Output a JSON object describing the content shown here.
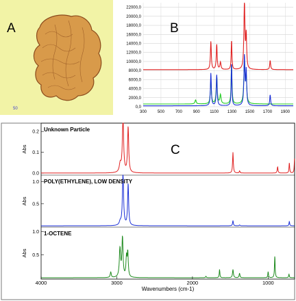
{
  "panels": {
    "a": {
      "letter": "A",
      "scale_label": "50",
      "background": "#f2f3a6",
      "particle_fill": "#d89a4a",
      "particle_stroke": "#8a4a1c"
    },
    "b": {
      "letter": "B"
    },
    "c": {
      "letter": "C"
    }
  },
  "chart_data": [
    {
      "id": "raman",
      "type": "line",
      "ylim": [
        0,
        23000
      ],
      "xlim": [
        300,
        1990
      ],
      "grid": true,
      "y_ticks": [
        "0,0",
        "2000,0",
        "4000,0",
        "6000,0",
        "8000,0",
        "10000,0",
        "12000,0",
        "14000,0",
        "16000,0",
        "18000,0",
        "20000,0",
        "22000,0"
      ],
      "y_tick_values": [
        0,
        2000,
        4000,
        6000,
        8000,
        10000,
        12000,
        14000,
        16000,
        18000,
        20000,
        22000
      ],
      "x_ticks": [
        "300",
        "500",
        "700",
        "900",
        "1100",
        "1300",
        "1500",
        "1700",
        "1900"
      ],
      "x_tick_values": [
        300,
        500,
        700,
        900,
        1100,
        1300,
        1500,
        1700,
        1900
      ],
      "series": [
        {
          "color": "#e02020",
          "baseline": 8200,
          "peaks": [
            [
              1062,
              6200,
              6
            ],
            [
              1128,
              5500,
              6
            ],
            [
              1170,
              1600,
              7
            ],
            [
              1295,
              6400,
              5
            ],
            [
              1440,
              14800,
              7
            ],
            [
              1460,
              7200,
              6
            ],
            [
              1730,
              2000,
              6
            ]
          ]
        },
        {
          "color": "#1a2fd6",
          "baseline": 200,
          "peaks": [
            [
              1062,
              7200,
              6
            ],
            [
              1128,
              6800,
              6
            ],
            [
              1295,
              9400,
              5
            ],
            [
              1440,
              10800,
              7
            ],
            [
              1460,
              7400,
              6
            ],
            [
              1730,
              2400,
              6
            ]
          ]
        },
        {
          "color": "#22cc22",
          "baseline": 600,
          "peaks": [
            [
              890,
              900,
              8
            ],
            [
              1062,
              5000,
              7
            ],
            [
              1128,
              6000,
              7
            ],
            [
              1170,
              2000,
              8
            ],
            [
              1295,
              8600,
              6
            ],
            [
              1440,
              9400,
              8
            ],
            [
              1460,
              5600,
              7
            ]
          ]
        }
      ]
    },
    {
      "id": "unknown-particle",
      "type": "line",
      "title": "Unknown Particle",
      "ylabel": "Abs",
      "ylim": [
        -0.01,
        0.24
      ],
      "xlim": [
        4000,
        650
      ],
      "y_ticks": [
        "0.0",
        "0.1",
        "0.2"
      ],
      "y_tick_values": [
        0,
        0.1,
        0.2
      ],
      "series": [
        {
          "color": "#e02020",
          "baseline": 0.0,
          "peaks": [
            [
              2955,
              0.04,
              14
            ],
            [
              2918,
              0.27,
              10
            ],
            [
              2850,
              0.22,
              9
            ],
            [
              1465,
              0.1,
              6
            ],
            [
              1377,
              0.01,
              6
            ],
            [
              720,
              0.05,
              5
            ],
            [
              875,
              0.03,
              6
            ],
            [
              650,
              0.08,
              5
            ]
          ]
        }
      ]
    },
    {
      "id": "ldpe",
      "type": "line",
      "title": "POLY(ETHYLENE), LOW DENSITY",
      "ylabel": "Abs",
      "ylim": [
        -0.03,
        1.15
      ],
      "xlim": [
        4000,
        650
      ],
      "y_ticks": [
        "0.5",
        "1.0"
      ],
      "y_tick_values": [
        0.5,
        1.0
      ],
      "series": [
        {
          "color": "#1a2fd6",
          "baseline": 0.0,
          "peaks": [
            [
              2955,
              0.08,
              14
            ],
            [
              2918,
              1.25,
              9
            ],
            [
              2850,
              0.95,
              8
            ],
            [
              1465,
              0.12,
              6
            ],
            [
              1377,
              0.02,
              6
            ],
            [
              720,
              0.1,
              5
            ]
          ]
        }
      ]
    },
    {
      "id": "octene",
      "type": "line",
      "title": "1-OCTENE",
      "ylabel": "Abs",
      "xlabel": "Wavenumbers (cm-1)",
      "ylim": [
        -0.03,
        1.1
      ],
      "xlim": [
        4000,
        650
      ],
      "y_ticks": [
        "0.5",
        "1.0"
      ],
      "y_tick_values": [
        0.5,
        1.0
      ],
      "x_ticks": [
        "4000",
        "3000",
        "2000",
        "1000"
      ],
      "x_tick_values": [
        4000,
        3000,
        2000,
        1000
      ],
      "series": [
        {
          "color": "#1e8a1e",
          "baseline": 0.0,
          "peaks": [
            [
              3080,
              0.12,
              8
            ],
            [
              2958,
              0.62,
              10
            ],
            [
              2925,
              0.85,
              9
            ],
            [
              2872,
              0.42,
              8
            ],
            [
              2855,
              0.52,
              8
            ],
            [
              1822,
              0.03,
              6
            ],
            [
              1642,
              0.18,
              5
            ],
            [
              1465,
              0.18,
              7
            ],
            [
              1378,
              0.1,
              6
            ],
            [
              1000,
              0.13,
              5
            ],
            [
              912,
              0.48,
              5
            ],
            [
              725,
              0.08,
              5
            ]
          ]
        }
      ]
    }
  ]
}
